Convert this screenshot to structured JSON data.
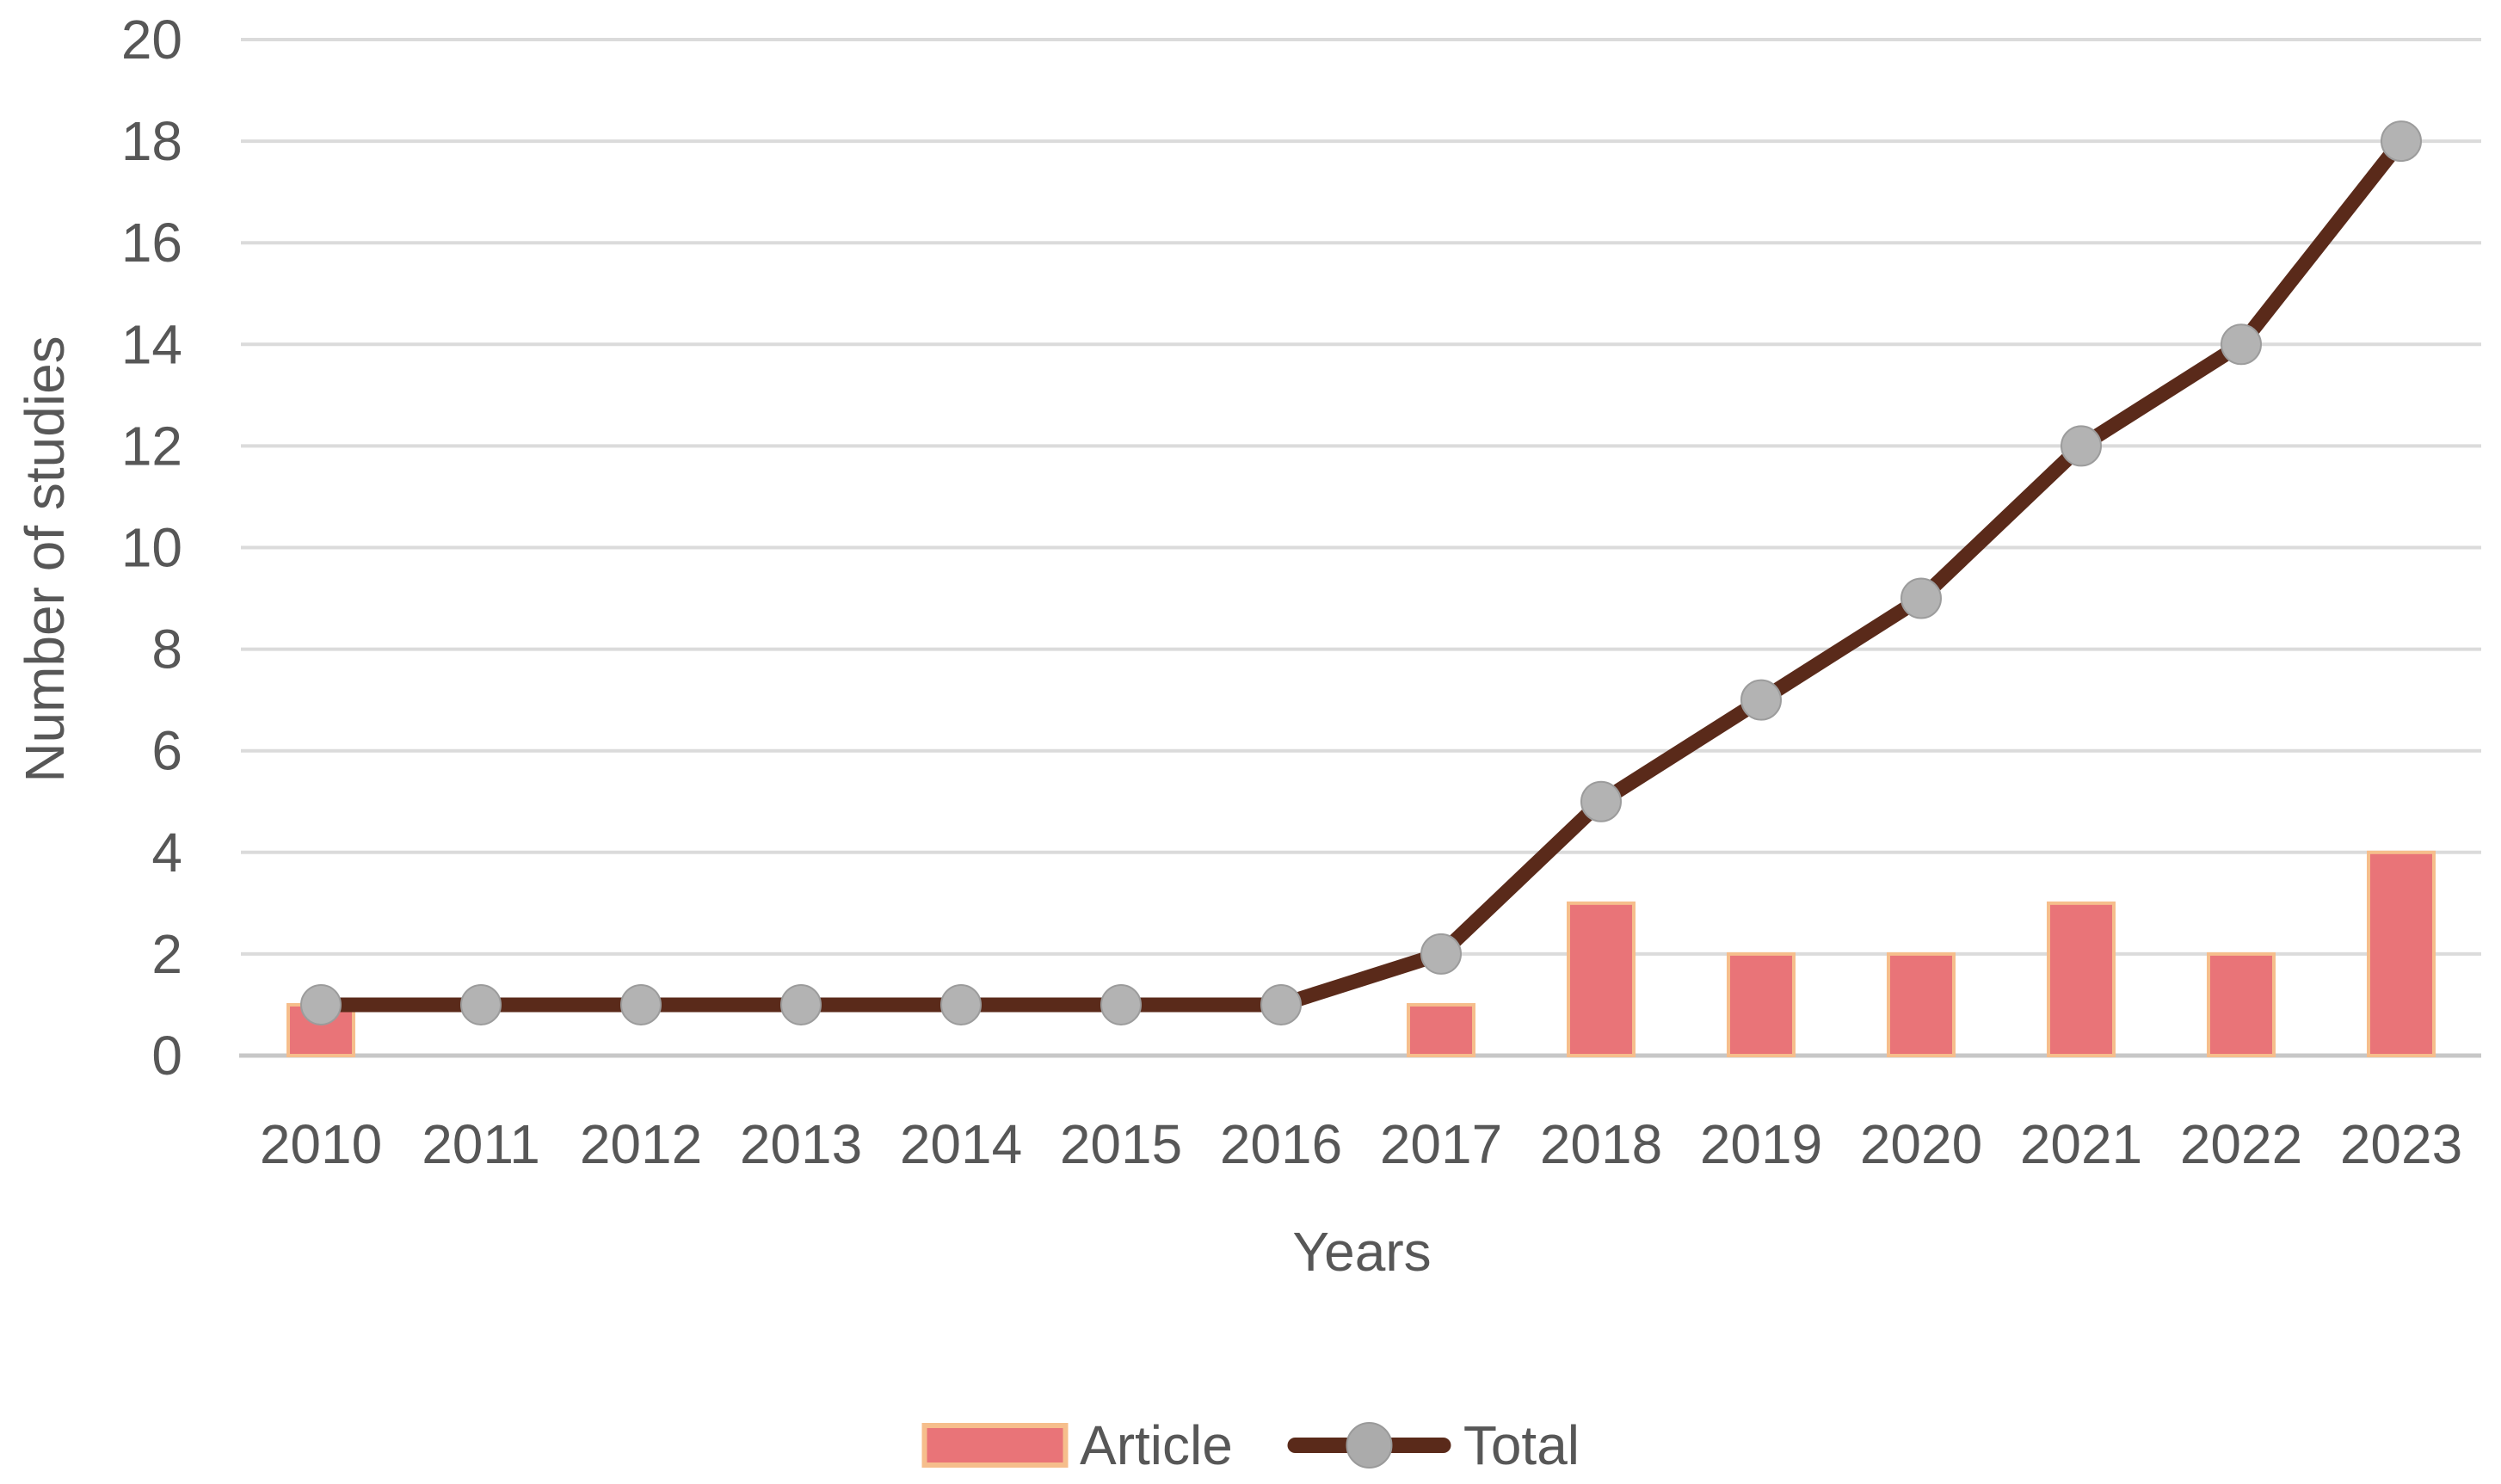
{
  "chart_data": {
    "type": "combo",
    "categories": [
      "2010",
      "2011",
      "2012",
      "2013",
      "2014",
      "2015",
      "2016",
      "2017",
      "2018",
      "2019",
      "2020",
      "2021",
      "2022",
      "2023"
    ],
    "series": [
      {
        "name": "Article",
        "kind": "bar",
        "values": [
          1,
          0,
          0,
          0,
          0,
          0,
          0,
          1,
          3,
          2,
          2,
          3,
          2,
          4
        ]
      },
      {
        "name": "Total",
        "kind": "line",
        "values": [
          1,
          1,
          1,
          1,
          1,
          1,
          1,
          2,
          5,
          7,
          9,
          12,
          14,
          18
        ]
      }
    ],
    "title": "",
    "xlabel": "Years",
    "ylabel": "Number of studies",
    "ylim": [
      0,
      20
    ],
    "yticks": [
      0,
      2,
      4,
      6,
      8,
      10,
      12,
      14,
      16,
      18,
      20
    ],
    "grid": true,
    "legend_position": "bottom"
  },
  "colors": {
    "bar_fill": "#E97478",
    "bar_border": "#F6BE8C",
    "line": "#5A2A1A",
    "marker_fill": "#B3B3B3",
    "marker_border": "#9C9C9C",
    "gridline": "#DBDBDB",
    "axis_line": "#C7C7C7",
    "text": "#575757"
  }
}
